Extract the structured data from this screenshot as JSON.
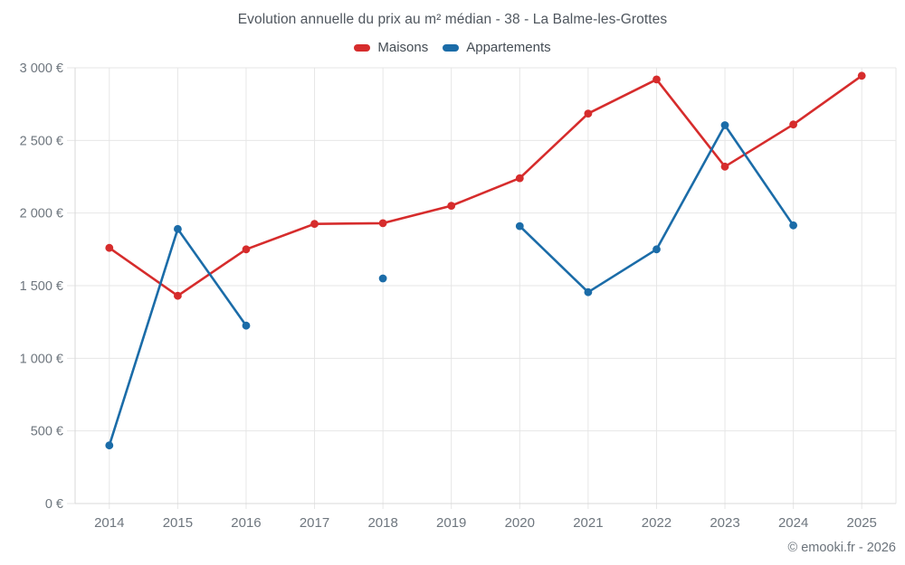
{
  "footer": "© emooki.fr - 2026",
  "chart_data": {
    "type": "line",
    "title": "Evolution annuelle du prix au m² médian - 38 - La Balme-les-Grottes",
    "xlabel": "",
    "ylabel": "",
    "x": [
      2014,
      2015,
      2016,
      2017,
      2018,
      2019,
      2020,
      2021,
      2022,
      2023,
      2024,
      2025
    ],
    "ylim": [
      0,
      3000
    ],
    "ytick_step": 500,
    "ytick_labels": [
      "0 €",
      "500 €",
      "1 000 €",
      "1 500 €",
      "2 000 €",
      "2 500 €",
      "3 000 €"
    ],
    "grid": true,
    "legend_position": "top",
    "series": [
      {
        "name": "Maisons",
        "color": "#d62c2c",
        "values": [
          1760,
          1430,
          1750,
          1925,
          1930,
          2050,
          2240,
          2685,
          2920,
          2320,
          2610,
          2945
        ]
      },
      {
        "name": "Appartements",
        "color": "#1b6ca8",
        "values": [
          400,
          1890,
          1225,
          null,
          1550,
          null,
          1910,
          1455,
          1750,
          2605,
          1915,
          null
        ]
      }
    ],
    "colors": {
      "grid": "#e6e6e6",
      "axis": "#d9d9d9",
      "tick_label": "#6e767e",
      "title_text": "#4f565e",
      "legend_text": "#444c54"
    }
  }
}
